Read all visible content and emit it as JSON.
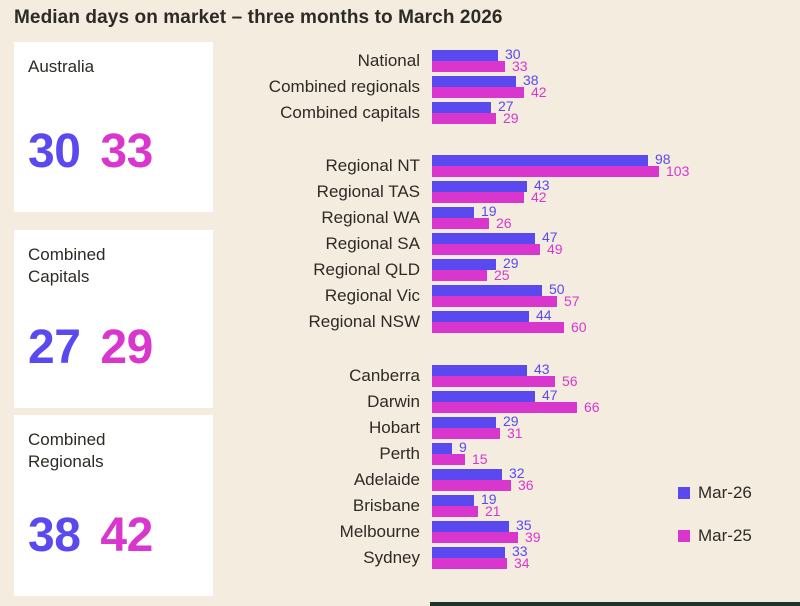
{
  "title": "Median days on market – three months to March 2026",
  "colors": {
    "mar26": "#5A49EF",
    "mar25": "#D936CE",
    "background": "#F4ECDF",
    "card": "#FFFFFF",
    "text": "#2E2A25"
  },
  "cards": [
    {
      "label": "Australia",
      "mar26": "30",
      "mar25": "33"
    },
    {
      "label": "Combined Capitals",
      "mar26": "27",
      "mar25": "29"
    },
    {
      "label": "Combined Regionals",
      "mar26": "38",
      "mar25": "42"
    }
  ],
  "legend": [
    {
      "label": "Mar-26",
      "color": "#5A49EF"
    },
    {
      "label": "Mar-25",
      "color": "#D936CE"
    }
  ],
  "chart_data": {
    "type": "bar",
    "orientation": "horizontal",
    "title": "Median days on market – three months to March 2026",
    "xlabel": "Median days on market",
    "xlim": [
      0,
      110
    ],
    "grid": false,
    "legend_position": "right",
    "series_names": [
      "Mar-26",
      "Mar-25"
    ],
    "groups": [
      {
        "rows": [
          {
            "label": "National",
            "values": [
              30,
              33
            ]
          },
          {
            "label": "Combined regionals",
            "values": [
              38,
              42
            ]
          },
          {
            "label": "Combined capitals",
            "values": [
              27,
              29
            ]
          }
        ]
      },
      {
        "rows": [
          {
            "label": "Regional NT",
            "values": [
              98,
              103
            ]
          },
          {
            "label": "Regional TAS",
            "values": [
              43,
              42
            ]
          },
          {
            "label": "Regional WA",
            "values": [
              19,
              26
            ]
          },
          {
            "label": "Regional SA",
            "values": [
              47,
              49
            ]
          },
          {
            "label": "Regional QLD",
            "values": [
              29,
              25
            ]
          },
          {
            "label": "Regional Vic",
            "values": [
              50,
              57
            ]
          },
          {
            "label": "Regional NSW",
            "values": [
              44,
              60
            ]
          }
        ]
      },
      {
        "rows": [
          {
            "label": "Canberra",
            "values": [
              43,
              56
            ]
          },
          {
            "label": "Darwin",
            "values": [
              47,
              66
            ]
          },
          {
            "label": "Hobart",
            "values": [
              29,
              31
            ]
          },
          {
            "label": "Perth",
            "values": [
              9,
              15
            ]
          },
          {
            "label": "Adelaide",
            "values": [
              32,
              36
            ]
          },
          {
            "label": "Brisbane",
            "values": [
              19,
              21
            ]
          },
          {
            "label": "Melbourne",
            "values": [
              35,
              39
            ]
          },
          {
            "label": "Sydney",
            "values": [
              33,
              34
            ]
          }
        ]
      }
    ]
  }
}
